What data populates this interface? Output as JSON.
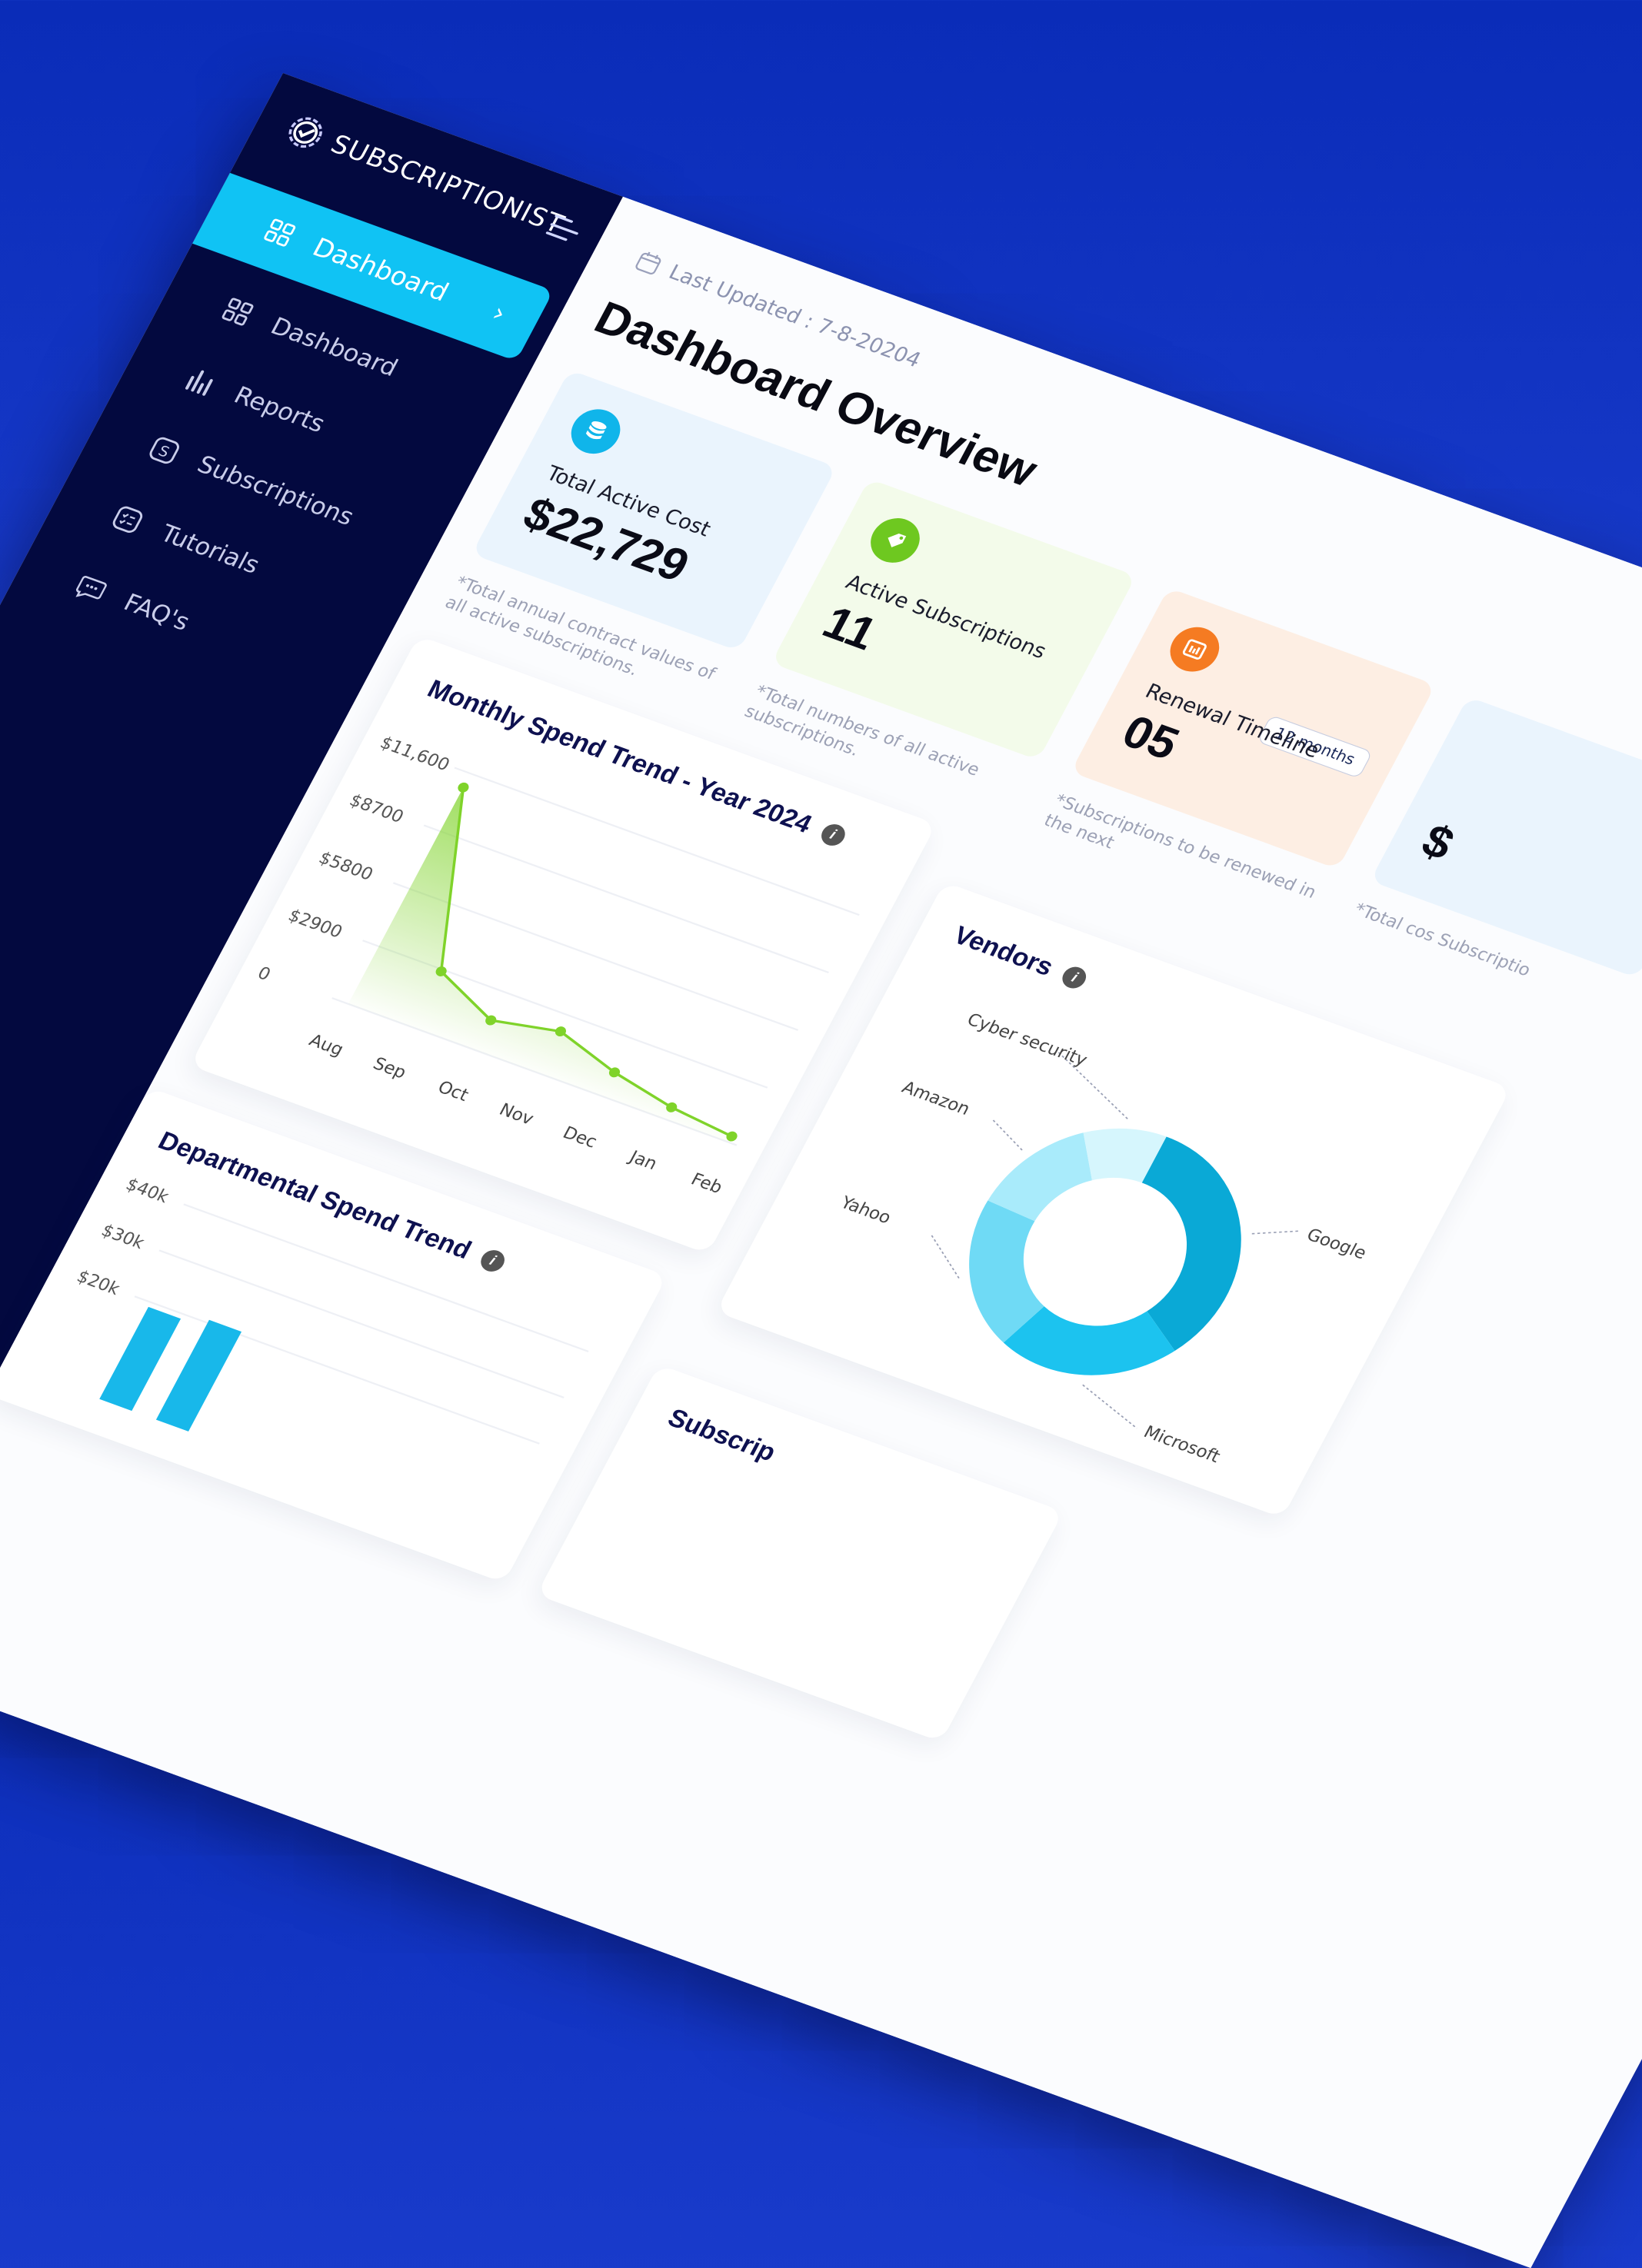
{
  "brand": {
    "name": "SUBSCRIPTIONIST"
  },
  "sidebar": {
    "items": [
      {
        "label": "Dashboard",
        "icon": "grid-icon",
        "active": true
      },
      {
        "label": "Dashboard",
        "icon": "grid-icon"
      },
      {
        "label": "Reports",
        "icon": "bar-chart-icon"
      },
      {
        "label": "Subscriptions",
        "icon": "dollar-icon"
      },
      {
        "label": "Tutorials",
        "icon": "checklist-icon"
      },
      {
        "label": "FAQ's",
        "icon": "chat-icon"
      }
    ]
  },
  "header": {
    "updated": "Last Updated : 7-8-20204",
    "title": "Dashboard Overview"
  },
  "cards": [
    {
      "label": "Total Active Cost",
      "value": "$22,729",
      "note": "*Total annual contract values of all  active subscriptions.",
      "color": "#eaf4fd",
      "badge": "#10b5ea"
    },
    {
      "label": "Active Subscriptions",
      "value": "11",
      "note": "*Total numbers of all active subscriptions.",
      "color": "#f3fbea",
      "badge": "#6ec820"
    },
    {
      "label": "Renewal Timeline",
      "value": "05",
      "pill": "12 months",
      "note": "*Subscriptions to be renewed in the next",
      "color": "#fdeee3",
      "badge": "#f57b22"
    },
    {
      "label": "",
      "value": "$",
      "note": "*Total cos Subscriptio",
      "color": "#eaf4fd",
      "badge": "#10b5ea"
    }
  ],
  "monthly": {
    "title": "Monthly Spend Trend - Year 2024",
    "chart_data": {
      "type": "area",
      "title": "Monthly Spend Trend - Year 2024",
      "categories": [
        "Aug",
        "Sep",
        "Oct",
        "Nov",
        "Dec",
        "Jan",
        "Feb"
      ],
      "values": [
        10900,
        2800,
        1500,
        2100,
        1200,
        600,
        300
      ],
      "y_ticks": [
        "$11,600",
        "$8700",
        "$5800",
        "$2900",
        "0"
      ],
      "ylim": [
        0,
        11600
      ],
      "color": "#7fd32a"
    }
  },
  "vendors": {
    "title": "Vendors",
    "chart_data": {
      "type": "pie",
      "labels": [
        "Google",
        "Microsoft",
        "Yahoo",
        "Amazon",
        "Cyber security"
      ],
      "values": [
        34,
        22,
        20,
        14,
        10
      ],
      "colors": [
        "#0aa9d6",
        "#1cc3ef",
        "#6fdaf5",
        "#a9ebfb",
        "#d6f6fd"
      ]
    }
  },
  "departmental": {
    "title": "Departmental Spend Trend",
    "y_ticks": [
      "$40k",
      "$30k",
      "$20k"
    ]
  },
  "subscriptions_panel": {
    "title": "Subscrip"
  }
}
